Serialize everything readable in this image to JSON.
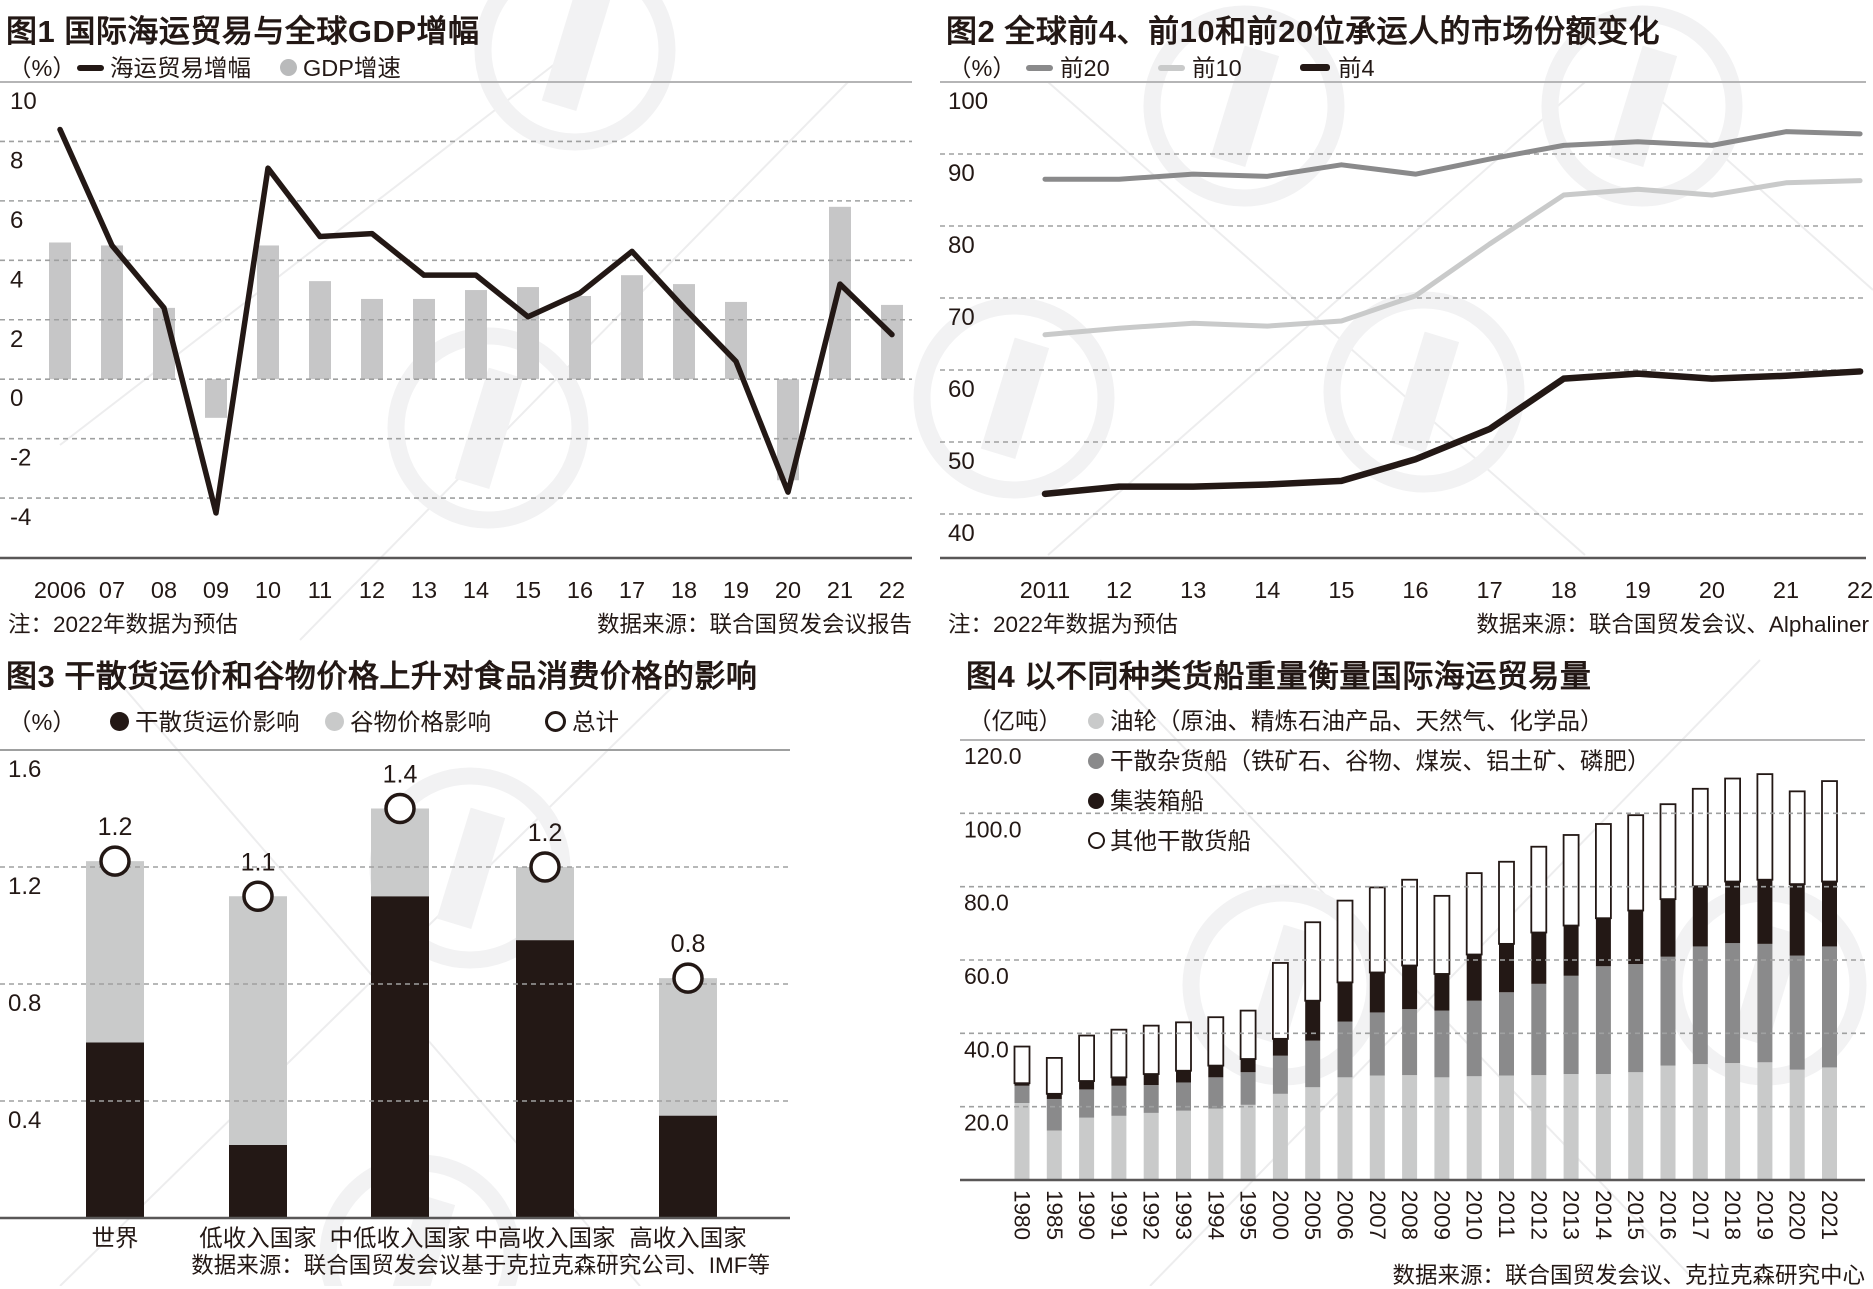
{
  "page": {
    "background": "#ffffff"
  },
  "colors": {
    "ink": "#231815",
    "bar_gray": "#c6c6c7",
    "light_gray": "#c9caca",
    "mid_gray": "#8a8a8b",
    "grid": "#9fa0a0",
    "top_border": "#b5b5b6",
    "axis": "#595757",
    "watermark": "#f2f2f3"
  },
  "chart_data": [
    {
      "id": "fig1",
      "type": "line+bar",
      "title": "图1 国际海运贸易与全球GDP增幅",
      "unit": "（%）",
      "yticks": [
        10,
        8,
        6,
        4,
        2,
        0,
        -2,
        -4
      ],
      "ylim": [
        -6,
        10
      ],
      "grid": "dashed-horizontal",
      "categories": [
        "2006",
        "07",
        "08",
        "09",
        "10",
        "11",
        "12",
        "13",
        "14",
        "15",
        "16",
        "17",
        "18",
        "19",
        "20",
        "21",
        "22"
      ],
      "series": [
        {
          "name": "海运贸易增幅",
          "type": "line",
          "color": "#231815",
          "values": [
            8.4,
            4.5,
            2.4,
            -4.5,
            7.1,
            4.8,
            4.9,
            3.5,
            3.5,
            2.1,
            2.9,
            4.3,
            2.4,
            0.6,
            -3.8,
            3.2,
            1.5
          ]
        },
        {
          "name": "GDP增速",
          "type": "bar",
          "color": "#c6c6c7",
          "values": [
            4.6,
            4.5,
            2.4,
            -1.3,
            4.5,
            3.3,
            2.7,
            2.7,
            3.0,
            3.1,
            2.8,
            3.5,
            3.2,
            2.6,
            -3.4,
            5.8,
            2.5
          ]
        }
      ],
      "note": "注：2022年数据为预估",
      "source": "数据来源：联合国贸发会议报告"
    },
    {
      "id": "fig2",
      "type": "line",
      "title": "图2 全球前4、前10和前20位承运人的市场份额变化",
      "unit": "（%）",
      "yticks": [
        100,
        90,
        80,
        70,
        60,
        50,
        40
      ],
      "ylim": [
        35,
        100
      ],
      "grid": "dashed-horizontal",
      "categories": [
        "2011",
        "12",
        "13",
        "14",
        "15",
        "16",
        "17",
        "18",
        "19",
        "20",
        "21",
        "22"
      ],
      "series": [
        {
          "name": "前20",
          "type": "line",
          "color": "#8a8a8b",
          "values": [
            86.5,
            86.5,
            87.2,
            86.9,
            88.5,
            87.2,
            89.3,
            91.2,
            91.7,
            91.2,
            93.1,
            92.8
          ]
        },
        {
          "name": "前10",
          "type": "line",
          "color": "#c9caca",
          "values": [
            64.9,
            65.8,
            66.5,
            66.1,
            66.8,
            70.3,
            77.5,
            84.3,
            85.1,
            84.3,
            86.0,
            86.3
          ]
        },
        {
          "name": "前4",
          "type": "line",
          "color": "#231815",
          "values": [
            42.8,
            43.8,
            43.8,
            44.1,
            44.6,
            47.6,
            51.8,
            58.8,
            59.5,
            58.8,
            59.2,
            59.8
          ]
        }
      ],
      "note": "注：2022年数据为预估",
      "source": "数据来源：联合国贸发会议、Alphaliner"
    },
    {
      "id": "fig3",
      "type": "stacked-bar",
      "title": "图3 干散货运价和谷物价格上升对食品消费价格的影响",
      "unit": "（%）",
      "yticks": [
        "1.6",
        "1.2",
        "0.8",
        "0.4"
      ],
      "ylim": [
        0,
        1.6
      ],
      "grid": "dashed-horizontal",
      "categories": [
        "世界",
        "低收入国家",
        "中低收入国家",
        "中高收入国家",
        "高收入国家"
      ],
      "series": [
        {
          "name": "干散货运价影响",
          "color": "#231815",
          "values": [
            0.6,
            0.25,
            1.1,
            0.95,
            0.35
          ]
        },
        {
          "name": "谷物价格影响",
          "color": "#c9caca",
          "values": [
            0.62,
            0.85,
            0.3,
            0.25,
            0.47
          ]
        }
      ],
      "totals": {
        "name": "总计",
        "marker": "open-circle",
        "values": [
          1.22,
          1.1,
          1.4,
          1.2,
          0.82
        ],
        "labels": [
          "1.2",
          "1.1",
          "1.4",
          "1.2",
          "0.8"
        ]
      },
      "source": "数据来源：联合国贸发会议基于克拉克森研究公司、IMF等"
    },
    {
      "id": "fig4",
      "type": "stacked-bar",
      "title": "图4 以不同种类货船重量衡量国际海运贸易量",
      "unit": "（亿吨）",
      "ytick_labels": [
        "120.0",
        "100.0",
        "80.0",
        "60.0",
        "40.0",
        "20.0"
      ],
      "yticks": [
        120,
        100,
        80,
        60,
        40,
        20
      ],
      "ylim": [
        0,
        120
      ],
      "grid": "dashed-horizontal",
      "categories": [
        "1980",
        "1985",
        "1990",
        "1991",
        "1992",
        "1993",
        "1994",
        "1995",
        "2000",
        "2005",
        "2006",
        "2007",
        "2008",
        "2009",
        "2010",
        "2011",
        "2012",
        "2013",
        "2014",
        "2015",
        "2016",
        "2017",
        "2018",
        "2019",
        "2020",
        "2021"
      ],
      "series": [
        {
          "name": "油轮（原油、精炼石油产品、天然气、化学品）",
          "color": "#c9caca",
          "values": [
            21.0,
            13.5,
            17.0,
            17.5,
            18.3,
            18.9,
            19.5,
            20.5,
            23.5,
            25.3,
            28.0,
            28.5,
            28.6,
            28.0,
            28.3,
            28.5,
            28.6,
            28.9,
            28.9,
            29.4,
            31.2,
            31.6,
            31.9,
            32.1,
            30.1,
            30.7
          ]
        },
        {
          "name": "干散杂货船（铁矿石、谷物、煤炭、铝土矿、磷肥）",
          "color": "#8a8a8b",
          "values": [
            4.7,
            8.6,
            7.7,
            8.2,
            7.6,
            7.7,
            8.5,
            8.9,
            10.4,
            12.7,
            15.2,
            17.2,
            18.0,
            18.2,
            20.6,
            22.7,
            24.9,
            26.8,
            29.4,
            29.5,
            29.7,
            32.1,
            32.7,
            32.3,
            31.1,
            33.0
          ]
        },
        {
          "name": "集装箱船",
          "color": "#231815",
          "values": [
            0.7,
            1.4,
            2.3,
            2.3,
            3.0,
            3.2,
            3.2,
            3.6,
            4.6,
            10.9,
            10.7,
            10.9,
            11.9,
            10.0,
            12.6,
            13.2,
            14.0,
            13.7,
            13.1,
            14.6,
            15.7,
            16.4,
            16.8,
            17.5,
            19.5,
            17.7
          ]
        },
        {
          "name": "其他干散货船",
          "color": "#ffffff",
          "outline": "#231815",
          "values": [
            10.0,
            9.8,
            12.4,
            13.0,
            13.2,
            13.2,
            13.2,
            13.2,
            20.7,
            21.4,
            22.3,
            23.2,
            23.4,
            21.3,
            22.2,
            22.4,
            23.4,
            24.7,
            25.7,
            26.0,
            25.9,
            26.6,
            28.1,
            28.8,
            25.3,
            27.4
          ]
        }
      ],
      "source": "数据来源：联合国贸发会议、克拉克森研究中心"
    }
  ]
}
